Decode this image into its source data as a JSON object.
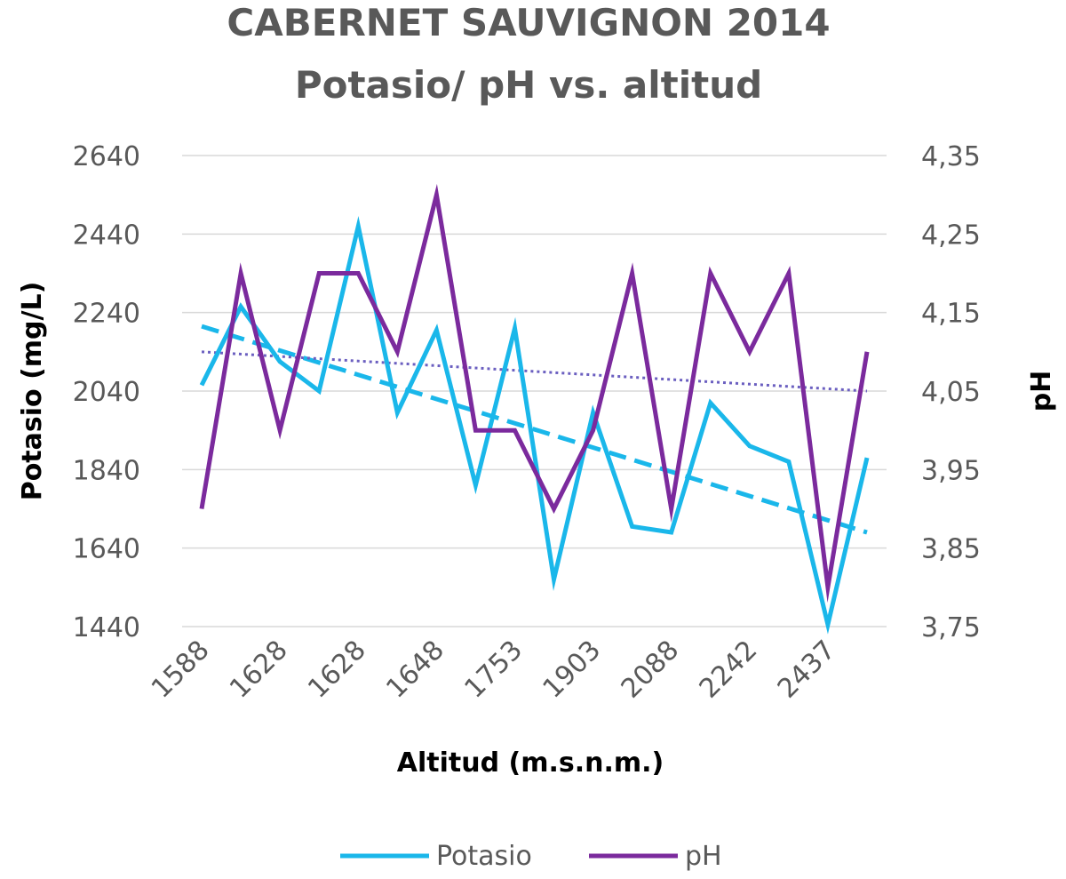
{
  "chart_data": {
    "type": "line",
    "title": "CABERNET SAUVIGNON 2014",
    "subtitle": "Potasio/ pH vs. altitud",
    "xlabel": "Altitud (m.s.n.m.)",
    "ylabel": "Potasio (mg/L)",
    "y2label": "pH",
    "x": [
      "1588",
      "",
      "1628",
      "",
      "1628",
      "",
      "1648",
      "",
      "1753",
      "",
      "1903",
      "",
      "2088",
      "",
      "2242",
      "",
      "2437",
      ""
    ],
    "x_tick_labels": [
      "1588",
      "1628",
      "1628",
      "1648",
      "1753",
      "1903",
      "2088",
      "2242",
      "2437"
    ],
    "ylim": [
      1440,
      2640
    ],
    "yticks": [
      "2640",
      "2440",
      "2240",
      "2040",
      "1840",
      "1640",
      "1440"
    ],
    "y2lim": [
      3.75,
      4.35
    ],
    "y2ticks": [
      "4,35",
      "4,25",
      "4,15",
      "4,05",
      "3,95",
      "3,85",
      "3,75"
    ],
    "grid": true,
    "legend_position": "bottom",
    "series": [
      {
        "name": "Potasio",
        "axis": "left",
        "color": "#1ab7ea",
        "values": [
          2055,
          2255,
          2115,
          2040,
          2460,
          1985,
          2195,
          1800,
          2200,
          1560,
          1985,
          1695,
          1680,
          2010,
          1900,
          1860,
          1445,
          1870
        ],
        "trendline": {
          "style": "dashed",
          "start": 2205,
          "end": 1680
        }
      },
      {
        "name": "pH",
        "axis": "right",
        "color": "#7b2a9d",
        "values": [
          3.9,
          4.2,
          4.0,
          4.2,
          4.2,
          4.1,
          4.3,
          4.0,
          4.0,
          3.9,
          4.0,
          4.2,
          3.9,
          4.2,
          4.1,
          4.2,
          3.8,
          4.1
        ],
        "trendline": {
          "style": "dotted",
          "color": "#6b5fc0",
          "start": 4.1,
          "end": 4.05
        }
      }
    ]
  }
}
